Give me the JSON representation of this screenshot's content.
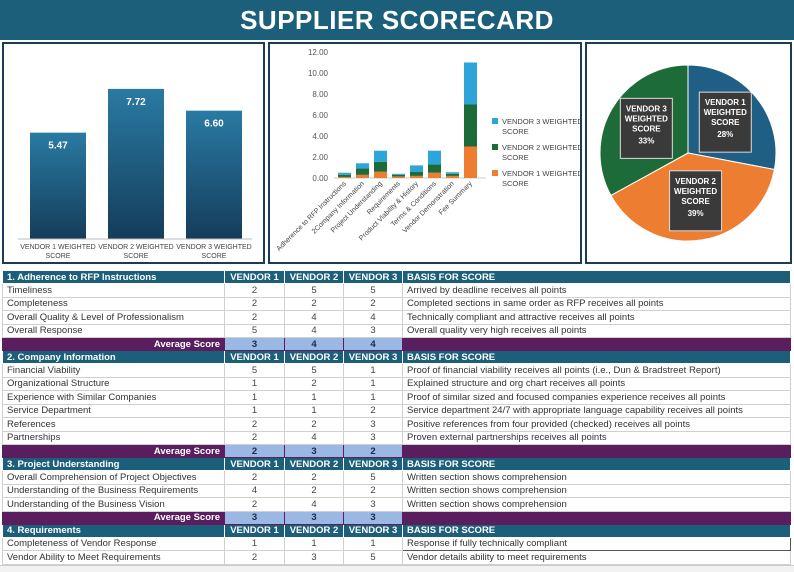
{
  "title": "SUPPLIER SCORECARD",
  "chart_data": [
    {
      "type": "bar",
      "categories": [
        "VENDOR 1 WEIGHTED SCORE",
        "VENDOR 2 WEIGHTED SCORE",
        "VENDOR 3 WEIGHTED SCORE"
      ],
      "values": [
        5.47,
        7.72,
        6.6
      ],
      "value_labels": [
        "5.47",
        "7.72",
        "6.60"
      ],
      "ylim": [
        0,
        9
      ],
      "colors": [
        "#1f5f85"
      ]
    },
    {
      "type": "bar",
      "stacked": true,
      "categories": [
        "Adherence to RFP Instructions",
        "2Company Information",
        "Project Understanding",
        "Requirements",
        "Product Viability & History",
        "Terms & Conditions",
        "Vendor Demonstration",
        "Fee Summary"
      ],
      "series": [
        {
          "name": "VENDOR 1 WEIGHTED SCORE",
          "values": [
            0.1,
            0.3,
            0.6,
            0.15,
            0.2,
            0.5,
            0.2,
            3.0
          ],
          "color": "#ed7d31"
        },
        {
          "name": "VENDOR 2 WEIGHTED SCORE",
          "values": [
            0.2,
            0.6,
            0.95,
            0.15,
            0.4,
            0.8,
            0.2,
            4.0
          ],
          "color": "#1e6b3a"
        },
        {
          "name": "VENDOR 3 WEIGHTED SCORE",
          "values": [
            0.2,
            0.5,
            1.05,
            0.1,
            0.6,
            1.3,
            0.15,
            4.0
          ],
          "color": "#2ea5d8"
        }
      ],
      "yticks": [
        "0.00",
        "2.00",
        "4.00",
        "6.00",
        "8.00",
        "10.00",
        "12.00"
      ],
      "ylim": [
        0,
        12
      ],
      "legend": "right"
    },
    {
      "type": "pie",
      "labels": [
        "VENDOR 1 WEIGHTED SCORE",
        "VENDOR 2 WEIGHTED SCORE",
        "VENDOR 3 WEIGHTED SCORE"
      ],
      "values": [
        28,
        39,
        33
      ],
      "value_labels": [
        "28%",
        "39%",
        "33%"
      ],
      "colors": [
        "#1f5f85",
        "#ed7d31",
        "#1e6b3a"
      ]
    }
  ],
  "sections": [
    {
      "title": "1. Adherence to RFP Instructions",
      "headers": [
        "VENDOR 1",
        "VENDOR 2",
        "VENDOR 3",
        "BASIS FOR SCORE"
      ],
      "rows": [
        {
          "label": "Timeliness",
          "v": [
            "2",
            "5",
            "5"
          ],
          "basis": "Arrived by deadline receives all points"
        },
        {
          "label": "Completeness",
          "v": [
            "2",
            "2",
            "2"
          ],
          "basis": "Completed sections in same order as RFP receives all points"
        },
        {
          "label": "Overall Quality & Level of Professionalism",
          "v": [
            "2",
            "4",
            "4"
          ],
          "basis": "Technically compliant and attractive receives all points"
        },
        {
          "label": "Overall Response",
          "v": [
            "5",
            "4",
            "3"
          ],
          "basis": "Overall quality very high receives all points"
        }
      ],
      "avg_label": "Average Score",
      "avg": [
        "3",
        "4",
        "4"
      ]
    },
    {
      "title": "2. Company Information",
      "headers": [
        "VENDOR 1",
        "VENDOR 2",
        "VENDOR 3",
        "BASIS FOR SCORE"
      ],
      "rows": [
        {
          "label": "Financial Viability",
          "v": [
            "5",
            "5",
            "1"
          ],
          "basis": "Proof of financial viability receives all points (i.e., Dun & Bradstreet Report)"
        },
        {
          "label": "Organizational Structure",
          "v": [
            "1",
            "2",
            "1"
          ],
          "basis": "Explained structure and org chart receives all points"
        },
        {
          "label": "Experience with Similar Companies",
          "v": [
            "1",
            "1",
            "1"
          ],
          "basis": "Proof of similar sized and focused companies experience receives all points"
        },
        {
          "label": "Service Department",
          "v": [
            "1",
            "1",
            "2"
          ],
          "basis": "Service department 24/7 with appropriate language capability receives all points"
        },
        {
          "label": "References",
          "v": [
            "2",
            "2",
            "3"
          ],
          "basis": "Positive references from four provided (checked) receives all points"
        },
        {
          "label": "Partnerships",
          "v": [
            "2",
            "4",
            "3"
          ],
          "basis": "Proven external partnerships receives all points"
        }
      ],
      "avg_label": "Average Score",
      "avg": [
        "2",
        "3",
        "2"
      ]
    },
    {
      "title": "3. Project Understanding",
      "headers": [
        "VENDOR 1",
        "VENDOR 2",
        "VENDOR 3",
        "BASIS FOR SCORE"
      ],
      "rows": [
        {
          "label": "Overall Comprehension of Project Objectives",
          "v": [
            "2",
            "2",
            "5"
          ],
          "basis": "Written section shows comprehension"
        },
        {
          "label": "Understanding of the Business Requirements",
          "v": [
            "4",
            "2",
            "2"
          ],
          "basis": "Written section shows comprehension"
        },
        {
          "label": "Understanding of the Business Vision",
          "v": [
            "2",
            "4",
            "3"
          ],
          "basis": "Written section shows comprehension"
        }
      ],
      "avg_label": "Average Score",
      "avg": [
        "3",
        "3",
        "3"
      ]
    },
    {
      "title": "4. Requirements",
      "headers": [
        "VENDOR 1",
        "VENDOR 2",
        "VENDOR 3",
        "BASIS FOR SCORE"
      ],
      "rows": [
        {
          "label": "Completeness of Vendor Response",
          "v": [
            "1",
            "1",
            "1"
          ],
          "basis": "Response if fully technically compliant"
        },
        {
          "label": "Vendor Ability to Meet Requirements",
          "v": [
            "2",
            "3",
            "5"
          ],
          "basis": "Vendor details ability to meet requirements"
        }
      ]
    }
  ]
}
